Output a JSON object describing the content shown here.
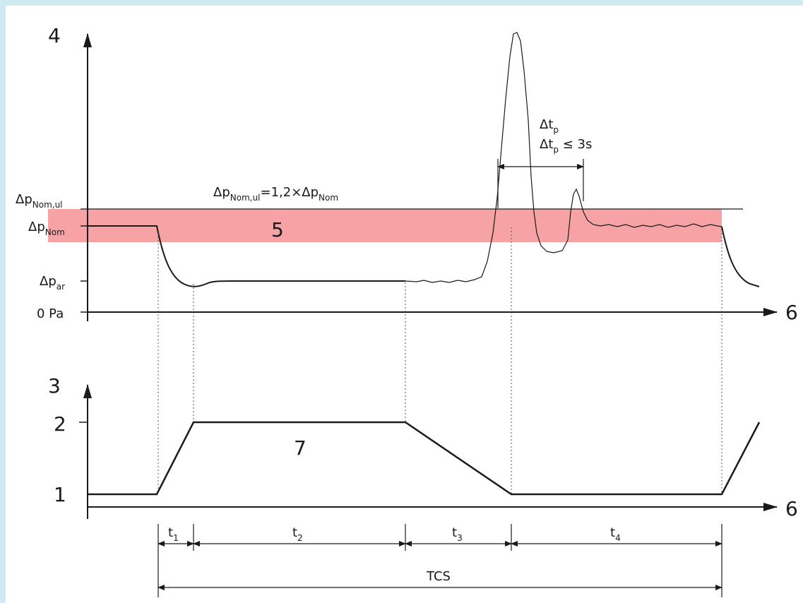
{
  "upper_plot": {
    "y_axis_id": "4",
    "x_axis_id": "6",
    "labels": {
      "p_nom_ul": {
        "base": "Δp",
        "sub": "Nom,ul"
      },
      "p_nom": {
        "base": "Δp",
        "sub": "Nom"
      },
      "p_ar": {
        "base": "Δp",
        "sub": "ar"
      },
      "zero": "0 Pa"
    },
    "formula": {
      "a": "Δp",
      "a_sub": "Nom,ul",
      "mid": "=1,2×Δp",
      "b_sub": "Nom"
    },
    "band_label": "5",
    "band_color": "#f7a3a6",
    "dtp": {
      "base": "Δt",
      "sub": "p"
    },
    "dtp_cond": {
      "base": "Δt",
      "sub": "p",
      "rest": " ≤ 3s"
    }
  },
  "lower_plot": {
    "y_axis_id": "3",
    "x_axis_id": "6",
    "y_ticks": [
      "2",
      "1"
    ],
    "curve_label": "7"
  },
  "intervals": [
    {
      "base": "t",
      "sub": "1"
    },
    {
      "base": "t",
      "sub": "2"
    },
    {
      "base": "t",
      "sub": "3"
    },
    {
      "base": "t",
      "sub": "4"
    }
  ],
  "total_interval": "TCS"
}
